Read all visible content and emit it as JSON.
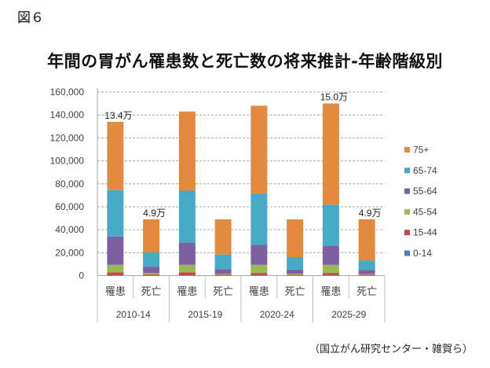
{
  "figure_label": "図６",
  "source_note": "（国立がん研究センター・雑賀ら）",
  "chart_data": {
    "type": "bar",
    "stacked": true,
    "title": "年間の胃がん罹患数と死亡数の将来推計-年齢階級別",
    "xlabel": "",
    "ylabel": "",
    "ylim": [
      0,
      160000
    ],
    "yticks": [
      0,
      20000,
      40000,
      60000,
      80000,
      100000,
      120000,
      140000,
      160000
    ],
    "ytick_labels": [
      "0",
      "20,000",
      "40,000",
      "60,000",
      "80,000",
      "100,000",
      "120,000",
      "140,000",
      "160,000"
    ],
    "grid": true,
    "legend_position": "right",
    "groups": [
      "2010-14",
      "2015-19",
      "2020-24",
      "2025-29"
    ],
    "categories": [
      "罹患",
      "死亡",
      "罹患",
      "死亡",
      "罹患",
      "死亡",
      "罹患",
      "死亡"
    ],
    "series": [
      {
        "name": "0-14",
        "color": "#4a7ebb",
        "values": [
          200,
          50,
          200,
          50,
          200,
          50,
          200,
          50
        ]
      },
      {
        "name": "15-44",
        "color": "#be4b48",
        "values": [
          2600,
          1050,
          2600,
          950,
          2100,
          850,
          2100,
          850
        ]
      },
      {
        "name": "45-54",
        "color": "#98b954",
        "values": [
          6600,
          1200,
          6600,
          600,
          7100,
          700,
          7100,
          500
        ]
      },
      {
        "name": "55-64",
        "color": "#7d60a0",
        "values": [
          24600,
          5500,
          19300,
          4100,
          17300,
          3700,
          16800,
          3600
        ]
      },
      {
        "name": "65-74",
        "color": "#46aac5",
        "values": [
          40500,
          12400,
          45300,
          12700,
          45000,
          10800,
          35600,
          8300
        ]
      },
      {
        "name": "75+",
        "color": "#e28a3e",
        "values": [
          59500,
          28800,
          69000,
          30600,
          76300,
          32900,
          88200,
          35700
        ]
      }
    ],
    "annotations": [
      {
        "bar_index": 0,
        "text": "13.4万"
      },
      {
        "bar_index": 1,
        "text": "4.9万"
      },
      {
        "bar_index": 6,
        "text": "15.0万"
      },
      {
        "bar_index": 7,
        "text": "4.9万"
      }
    ]
  }
}
